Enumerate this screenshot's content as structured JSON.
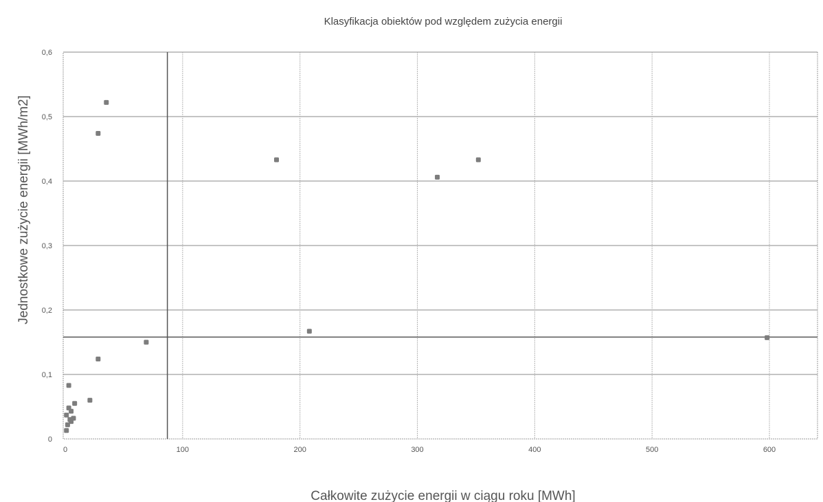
{
  "chart_data": {
    "type": "scatter",
    "title": "Klasyfikacja obiektów pod względem zużycia energii",
    "xlabel": "Całkowite zużycie energii w ciągu roku [MWh]",
    "ylabel": "Jednostkowe zużycie energii [MWh/m2]",
    "xlim": [
      0,
      640
    ],
    "ylim": [
      0,
      0.6
    ],
    "x_ticks": [
      0,
      100,
      200,
      300,
      400,
      500,
      600
    ],
    "x_tick_labels": [
      "0",
      "100",
      "200",
      "300",
      "400",
      "500",
      "600"
    ],
    "y_ticks": [
      0,
      0.1,
      0.2,
      0.3,
      0.4,
      0.5,
      0.6
    ],
    "y_tick_labels": [
      "0",
      "0,1",
      "0,2",
      "0,3",
      "0,4",
      "0,5",
      "0,6"
    ],
    "grid": true,
    "reference_lines": {
      "x": 87,
      "y": 0.158
    },
    "points": [
      {
        "x": 35,
        "y": 0.522
      },
      {
        "x": 28,
        "y": 0.474
      },
      {
        "x": 180,
        "y": 0.433
      },
      {
        "x": 352,
        "y": 0.433
      },
      {
        "x": 317,
        "y": 0.406
      },
      {
        "x": 208,
        "y": 0.167
      },
      {
        "x": 69,
        "y": 0.15
      },
      {
        "x": 28,
        "y": 0.124
      },
      {
        "x": 598,
        "y": 0.157
      },
      {
        "x": 3,
        "y": 0.083
      },
      {
        "x": 21,
        "y": 0.06
      },
      {
        "x": 8,
        "y": 0.055
      },
      {
        "x": 3,
        "y": 0.048
      },
      {
        "x": 5,
        "y": 0.043
      },
      {
        "x": 1,
        "y": 0.037
      },
      {
        "x": 7,
        "y": 0.032
      },
      {
        "x": 4,
        "y": 0.03
      },
      {
        "x": 2,
        "y": 0.022
      },
      {
        "x": 1,
        "y": 0.013
      },
      {
        "x": 5,
        "y": 0.027
      }
    ]
  },
  "colors": {
    "points": "#7d7d7d",
    "grid": "#8a8a8a",
    "reference": "#555555"
  }
}
